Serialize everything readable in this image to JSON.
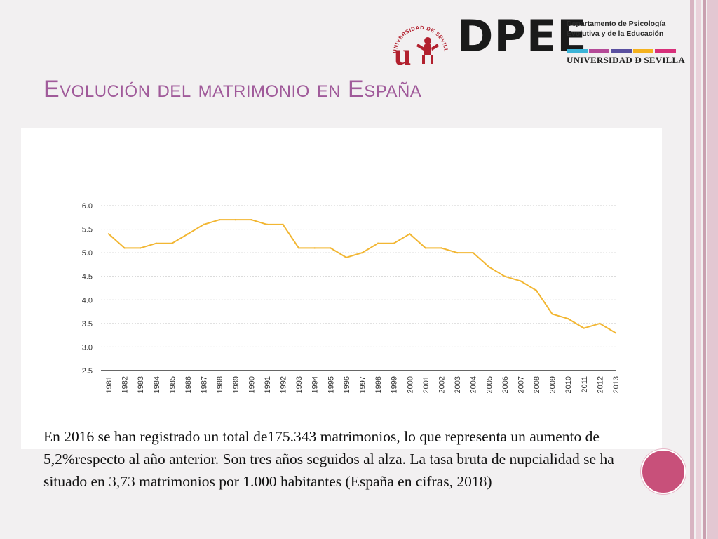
{
  "header": {
    "logo_us_text": "UNIVERSIDAD DE SEVILLA",
    "logo_us_letter": "u",
    "dpee": "DPEE",
    "dept_line1": "Departamento de Psicología",
    "dept_line2": "Evolutiva y de la Educación",
    "university": "UNIVERSIDAD Đ SEVILLA",
    "bar_colors": [
      "#3cb4d8",
      "#b54a98",
      "#5a4fa0",
      "#f5b21e",
      "#d8307a"
    ]
  },
  "slide": {
    "title": "Evolución del matrimonio en España",
    "body": "En 2016 se han registrado un total de175.343 matrimonios, lo que representa un aumento de 5,2%respecto al año anterior. Son tres años seguidos al alza. La tasa bruta de nupcialidad se ha situado en 3,73 matrimonios por 1.000 habitantes (España en cifras, 2018)"
  },
  "colors": {
    "line": "#f2b632",
    "title": "#a05a9a",
    "accent_circle": "#c8507a",
    "stripes": [
      "#c9a0b0",
      "#e3c7d2",
      "#c9a0b0",
      "#e3c7d2"
    ]
  },
  "chart_data": {
    "type": "line",
    "x": [
      "1981",
      "1982",
      "1983",
      "1984",
      "1985",
      "1986",
      "1987",
      "1988",
      "1989",
      "1990",
      "1991",
      "1992",
      "1993",
      "1994",
      "1995",
      "1996",
      "1997",
      "1998",
      "1999",
      "2000",
      "2001",
      "2002",
      "2003",
      "2004",
      "2005",
      "2006",
      "2007",
      "2008",
      "2009",
      "2010",
      "2011",
      "2012",
      "2013"
    ],
    "series": [
      {
        "values": [
          5.4,
          5.1,
          5.1,
          5.2,
          5.2,
          5.4,
          5.6,
          5.7,
          5.7,
          5.7,
          5.6,
          5.6,
          5.1,
          5.1,
          5.1,
          4.9,
          5.0,
          5.2,
          5.2,
          5.4,
          5.1,
          5.1,
          5.0,
          5.0,
          4.7,
          4.5,
          4.4,
          4.2,
          3.7,
          3.6,
          3.4,
          3.5,
          3.3
        ]
      }
    ],
    "yticks": [
      "2.5",
      "3.0",
      "3.5",
      "4.0",
      "4.5",
      "5.0",
      "5.5",
      "6.0"
    ],
    "ylim": [
      2.5,
      6.0
    ],
    "grid": true,
    "legend": "none",
    "title": "",
    "xlabel": "",
    "ylabel": ""
  }
}
